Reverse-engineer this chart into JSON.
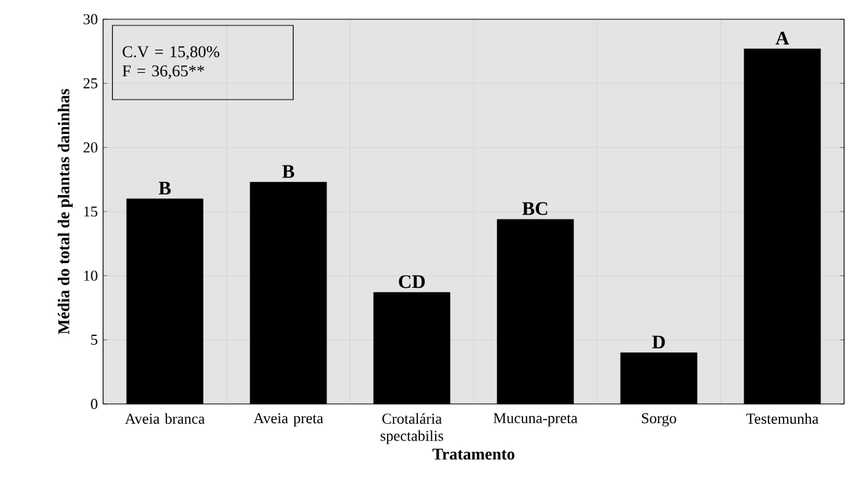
{
  "chart_data": {
    "type": "bar",
    "xlabel": "Tratamento",
    "ylabel": "Média do total de plantas daninhas",
    "categories": [
      "Aveia branca",
      "Aveia preta",
      "Crotalária spectabilis",
      "Mucuna-preta",
      "Sorgo",
      "Testemunha"
    ],
    "values": [
      16.0,
      17.3,
      8.7,
      14.4,
      4.0,
      27.7
    ],
    "color": "#000000",
    "ylim": [
      0,
      30
    ],
    "yticks": [
      0,
      5,
      10,
      15,
      20,
      25,
      30
    ],
    "grid": true,
    "annotations": [
      "C.V = 15,80%",
      "F = 36,65**",
      {
        "text": "B",
        "x": "Aveia branca",
        "y": 16.0
      },
      {
        "text": "B",
        "x": "Aveia preta",
        "y": 17.3
      },
      {
        "text": "CD",
        "x": "Crotalária spectabilis",
        "y": 8.7
      },
      {
        "text": "BC",
        "x": "Mucuna-preta",
        "y": 14.4
      },
      {
        "text": "D",
        "x": "Sorgo",
        "y": 4.0
      },
      {
        "text": "A",
        "x": "Testemunha",
        "y": 27.7
      }
    ]
  }
}
